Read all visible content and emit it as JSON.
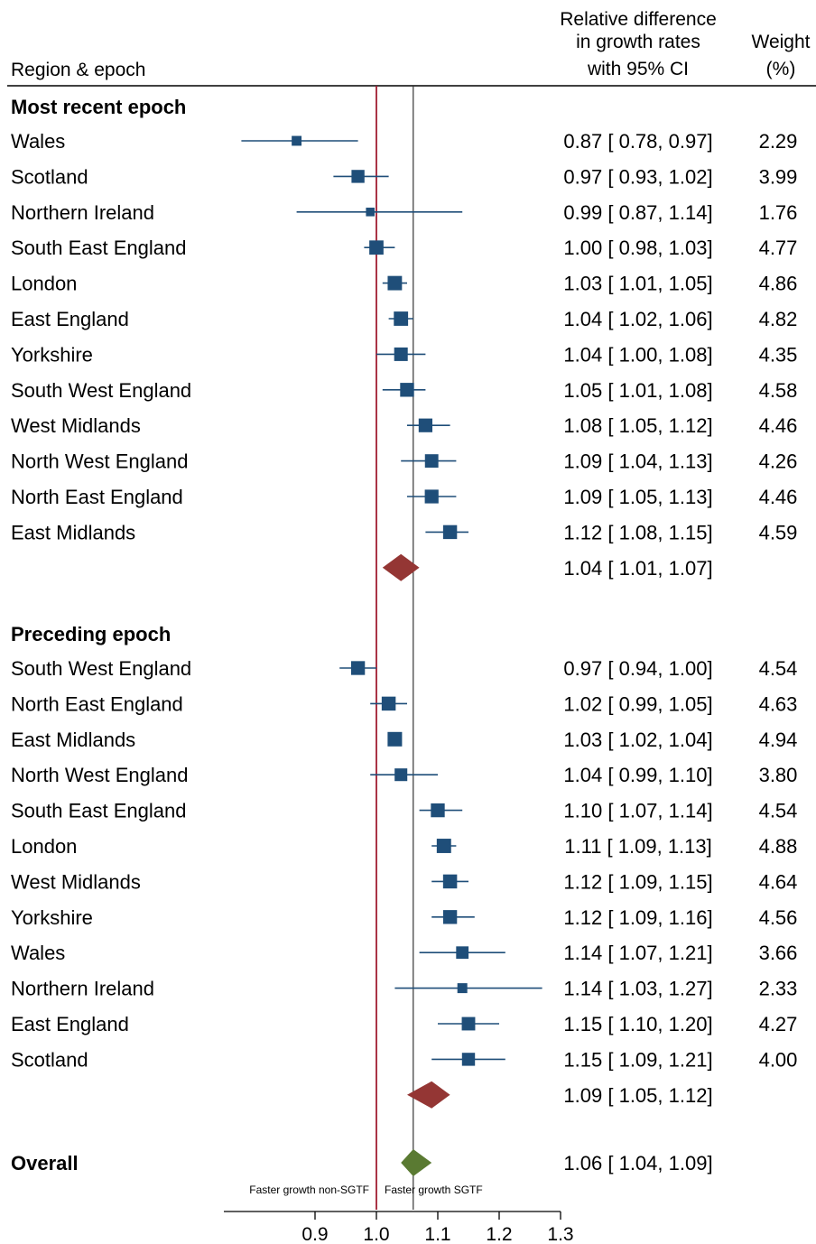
{
  "header": {
    "region_col": "Region & epoch",
    "effect_col": [
      "Relative difference",
      "in growth rates",
      "with 95% CI"
    ],
    "weight_col": [
      "Weight",
      "(%)"
    ]
  },
  "annotations": {
    "left": "Faster growth non-SGTF",
    "right": "Faster growth SGTF"
  },
  "chart_data": {
    "type": "forest",
    "x_ticks": [
      "0.9",
      "1.0",
      "1.1",
      "1.2",
      "1.3"
    ],
    "xlim": [
      0.78,
      1.3
    ],
    "reference_line": 1.0,
    "overall_line": 1.06,
    "groups": [
      {
        "name": "Most recent epoch",
        "rows": [
          {
            "label": "Wales",
            "est": 0.87,
            "lo": 0.78,
            "hi": 0.97,
            "ci_text": "0.87 [ 0.78,  0.97]",
            "weight": "2.29"
          },
          {
            "label": "Scotland",
            "est": 0.97,
            "lo": 0.93,
            "hi": 1.02,
            "ci_text": "0.97 [ 0.93,  1.02]",
            "weight": "3.99"
          },
          {
            "label": "Northern Ireland",
            "est": 0.99,
            "lo": 0.87,
            "hi": 1.14,
            "ci_text": "0.99 [ 0.87,  1.14]",
            "weight": "1.76"
          },
          {
            "label": "South East England",
            "est": 1.0,
            "lo": 0.98,
            "hi": 1.03,
            "ci_text": "1.00 [ 0.98,  1.03]",
            "weight": "4.77"
          },
          {
            "label": "London",
            "est": 1.03,
            "lo": 1.01,
            "hi": 1.05,
            "ci_text": "1.03 [ 1.01,  1.05]",
            "weight": "4.86"
          },
          {
            "label": "East England",
            "est": 1.04,
            "lo": 1.02,
            "hi": 1.06,
            "ci_text": "1.04 [ 1.02,  1.06]",
            "weight": "4.82"
          },
          {
            "label": "Yorkshire",
            "est": 1.04,
            "lo": 1.0,
            "hi": 1.08,
            "ci_text": "1.04 [ 1.00,  1.08]",
            "weight": "4.35"
          },
          {
            "label": "South West England",
            "est": 1.05,
            "lo": 1.01,
            "hi": 1.08,
            "ci_text": "1.05 [ 1.01,  1.08]",
            "weight": "4.58"
          },
          {
            "label": "West Midlands",
            "est": 1.08,
            "lo": 1.05,
            "hi": 1.12,
            "ci_text": "1.08 [ 1.05,  1.12]",
            "weight": "4.46"
          },
          {
            "label": "North West England",
            "est": 1.09,
            "lo": 1.04,
            "hi": 1.13,
            "ci_text": "1.09 [ 1.04,  1.13]",
            "weight": "4.26"
          },
          {
            "label": "North East England",
            "est": 1.09,
            "lo": 1.05,
            "hi": 1.13,
            "ci_text": "1.09 [ 1.05,  1.13]",
            "weight": "4.46"
          },
          {
            "label": "East Midlands",
            "est": 1.12,
            "lo": 1.08,
            "hi": 1.15,
            "ci_text": "1.12 [ 1.08,  1.15]",
            "weight": "4.59"
          }
        ],
        "summary": {
          "est": 1.04,
          "lo": 1.01,
          "hi": 1.07,
          "ci_text": "1.04 [ 1.01,  1.07]"
        }
      },
      {
        "name": "Preceding epoch",
        "rows": [
          {
            "label": "South West England",
            "est": 0.97,
            "lo": 0.94,
            "hi": 1.0,
            "ci_text": "0.97 [ 0.94,  1.00]",
            "weight": "4.54"
          },
          {
            "label": "North East England",
            "est": 1.02,
            "lo": 0.99,
            "hi": 1.05,
            "ci_text": "1.02 [ 0.99,  1.05]",
            "weight": "4.63"
          },
          {
            "label": "East Midlands",
            "est": 1.03,
            "lo": 1.02,
            "hi": 1.04,
            "ci_text": "1.03 [ 1.02,  1.04]",
            "weight": "4.94"
          },
          {
            "label": "North West England",
            "est": 1.04,
            "lo": 0.99,
            "hi": 1.1,
            "ci_text": "1.04 [ 0.99,  1.10]",
            "weight": "3.80"
          },
          {
            "label": "South East England",
            "est": 1.1,
            "lo": 1.07,
            "hi": 1.14,
            "ci_text": "1.10 [ 1.07,  1.14]",
            "weight": "4.54"
          },
          {
            "label": "London",
            "est": 1.11,
            "lo": 1.09,
            "hi": 1.13,
            "ci_text": "1.11 [ 1.09,  1.13]",
            "weight": "4.88"
          },
          {
            "label": "West Midlands",
            "est": 1.12,
            "lo": 1.09,
            "hi": 1.15,
            "ci_text": "1.12 [ 1.09,  1.15]",
            "weight": "4.64"
          },
          {
            "label": "Yorkshire",
            "est": 1.12,
            "lo": 1.09,
            "hi": 1.16,
            "ci_text": "1.12 [ 1.09,  1.16]",
            "weight": "4.56"
          },
          {
            "label": "Wales",
            "est": 1.14,
            "lo": 1.07,
            "hi": 1.21,
            "ci_text": "1.14 [ 1.07,  1.21]",
            "weight": "3.66"
          },
          {
            "label": "Northern Ireland",
            "est": 1.14,
            "lo": 1.03,
            "hi": 1.27,
            "ci_text": "1.14 [ 1.03,  1.27]",
            "weight": "2.33"
          },
          {
            "label": "East England",
            "est": 1.15,
            "lo": 1.1,
            "hi": 1.2,
            "ci_text": "1.15 [ 1.10,  1.20]",
            "weight": "4.27"
          },
          {
            "label": "Scotland",
            "est": 1.15,
            "lo": 1.09,
            "hi": 1.21,
            "ci_text": "1.15 [ 1.09,  1.21]",
            "weight": "4.00"
          }
        ],
        "summary": {
          "est": 1.09,
          "lo": 1.05,
          "hi": 1.12,
          "ci_text": "1.09 [ 1.05,  1.12]"
        }
      }
    ],
    "overall": {
      "label": "Overall",
      "est": 1.06,
      "lo": 1.04,
      "hi": 1.09,
      "ci_text": "1.06 [ 1.04,  1.09]"
    },
    "colors": {
      "marker": "#1f4e79",
      "summary_diamond": "#943634",
      "overall_diamond": "#5a7a32",
      "reference_line": "#a01e32",
      "overall_line": "#333333"
    }
  }
}
